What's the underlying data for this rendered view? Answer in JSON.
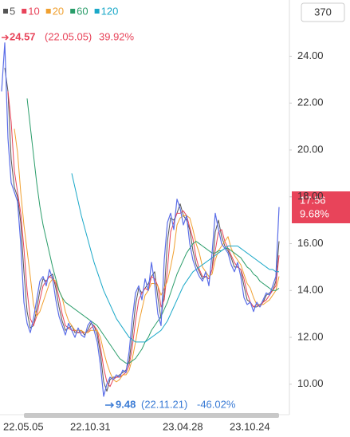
{
  "chart_data": {
    "type": "line",
    "badge": "370",
    "categories": [
      null,
      "22.05.05",
      null,
      null,
      null,
      null,
      null,
      null,
      null,
      null,
      null,
      null,
      null,
      null,
      null,
      null,
      null,
      null,
      null,
      null,
      null,
      null,
      "22.10.31",
      null,
      null,
      null,
      null,
      null,
      null,
      null,
      null,
      null,
      null,
      null,
      null,
      null,
      null,
      null,
      null,
      null,
      null,
      null,
      null,
      null,
      null,
      null,
      null,
      null,
      null,
      null,
      null,
      "23.04.28",
      null,
      null,
      null,
      null,
      null,
      null,
      null,
      null,
      null,
      null,
      null,
      null,
      null,
      null,
      null,
      null,
      null,
      null,
      null,
      null,
      "23.10.24",
      null,
      null,
      null,
      null,
      null,
      null,
      null,
      null,
      null,
      null,
      null,
      null,
      null,
      null,
      null
    ],
    "price": {
      "color": "#5b6ee8",
      "values": [
        22.5,
        24.57,
        20.5,
        18.6,
        18.2,
        17.8,
        16.0,
        13.5,
        12.6,
        12.2,
        12.8,
        13.6,
        14.4,
        14.6,
        14.2,
        14.9,
        14.5,
        13.6,
        12.9,
        12.5,
        12.1,
        12.6,
        12.3,
        12.0,
        12.4,
        12.1,
        12.0,
        12.5,
        12.7,
        12.3,
        11.8,
        10.8,
        9.48,
        10.0,
        10.3,
        10.2,
        10.4,
        10.3,
        10.6,
        10.5,
        11.4,
        12.8,
        13.9,
        14.2,
        13.6,
        14.5,
        14.0,
        15.2,
        14.3,
        13.0,
        12.5,
        15.3,
        16.9,
        17.3,
        16.6,
        17.9,
        17.5,
        16.8,
        17.2,
        16.0,
        15.3,
        14.9,
        14.6,
        14.4,
        14.8,
        14.2,
        15.6,
        17.3,
        16.6,
        16.0,
        15.8,
        15.6,
        15.1,
        14.8,
        15.2,
        14.6,
        13.7,
        13.4,
        13.5,
        13.1,
        13.5,
        13.3,
        13.6,
        13.9,
        13.8,
        14.2,
        14.6,
        17.56
      ]
    },
    "series": [
      {
        "name": "5",
        "color": "#555555",
        "values": [
          null,
          23.5,
          22.5,
          19.6,
          18.4,
          18.0,
          16.9,
          14.8,
          13.1,
          12.4,
          12.5,
          13.2,
          14.0,
          14.5,
          14.4,
          14.6,
          14.7,
          14.1,
          13.3,
          12.7,
          12.3,
          12.4,
          12.5,
          12.2,
          12.2,
          12.3,
          12.1,
          12.3,
          12.6,
          12.5,
          12.1,
          11.3,
          10.1,
          9.7,
          10.2,
          10.3,
          10.3,
          10.4,
          10.5,
          10.6,
          11.0,
          12.1,
          13.4,
          14.1,
          13.9,
          14.1,
          14.3,
          14.6,
          14.8,
          13.7,
          12.8,
          13.9,
          16.1,
          17.1,
          17.0,
          17.3,
          17.7,
          17.2,
          17.0,
          16.6,
          15.7,
          15.1,
          14.8,
          14.5,
          14.6,
          14.5,
          14.9,
          16.5,
          17.0,
          16.3,
          15.9,
          15.7,
          15.4,
          15.0,
          15.0,
          14.9,
          14.2,
          13.6,
          13.5,
          13.3,
          13.3,
          13.4,
          13.5,
          13.8,
          13.9,
          14.0,
          14.4,
          16.1
        ]
      },
      {
        "name": "10",
        "color": "#e8445a",
        "values": [
          null,
          null,
          22.5,
          21.2,
          19.1,
          18.2,
          17.3,
          15.8,
          14.0,
          12.8,
          12.5,
          12.9,
          13.6,
          14.2,
          14.4,
          14.6,
          14.5,
          14.3,
          13.7,
          13.0,
          12.5,
          12.4,
          12.3,
          12.3,
          12.2,
          12.2,
          12.2,
          12.2,
          12.4,
          12.5,
          12.3,
          11.6,
          10.7,
          10.1,
          9.9,
          10.2,
          10.3,
          10.3,
          10.4,
          10.5,
          10.8,
          11.6,
          12.7,
          13.6,
          13.9,
          14.1,
          14.0,
          14.6,
          14.5,
          14.2,
          13.3,
          13.6,
          14.9,
          16.5,
          16.9,
          17.3,
          17.3,
          17.4,
          17.2,
          16.7,
          16.2,
          15.4,
          14.9,
          14.6,
          14.6,
          14.5,
          14.9,
          15.7,
          16.5,
          16.6,
          16.1,
          15.8,
          15.5,
          15.2,
          15.0,
          14.9,
          14.5,
          13.9,
          13.5,
          13.3,
          13.4,
          13.3,
          13.5,
          13.6,
          13.8,
          14.0,
          14.2,
          15.5
        ]
      },
      {
        "name": "20",
        "color": "#f0a030",
        "values": [
          null,
          null,
          null,
          null,
          20.9,
          19.9,
          18.2,
          16.8,
          15.7,
          14.6,
          13.4,
          12.9,
          13.1,
          13.5,
          13.9,
          14.3,
          14.5,
          14.4,
          14.0,
          13.7,
          13.1,
          12.7,
          12.5,
          12.3,
          12.3,
          12.3,
          12.2,
          12.2,
          12.3,
          12.3,
          12.3,
          12.0,
          11.4,
          10.9,
          10.5,
          10.2,
          10.1,
          10.2,
          10.4,
          10.4,
          10.6,
          11.1,
          11.8,
          12.6,
          13.2,
          13.8,
          14.0,
          14.3,
          14.3,
          14.2,
          13.8,
          14.1,
          14.4,
          15.0,
          15.7,
          16.8,
          17.1,
          17.2,
          17.2,
          17.1,
          16.6,
          16.0,
          15.6,
          15.0,
          14.8,
          14.6,
          14.7,
          15.3,
          15.7,
          15.9,
          16.1,
          16.3,
          15.8,
          15.5,
          15.3,
          15.1,
          14.7,
          14.3,
          14.1,
          13.7,
          13.4,
          13.4,
          13.4,
          13.5,
          13.6,
          13.8,
          14.0,
          14.6
        ]
      },
      {
        "name": "60",
        "color": "#2a9d6a",
        "values": [
          null,
          null,
          null,
          null,
          null,
          null,
          null,
          null,
          22.2,
          21.0,
          19.8,
          18.6,
          17.6,
          16.8,
          16.2,
          15.6,
          15.0,
          14.5,
          14.0,
          13.7,
          13.5,
          13.4,
          13.3,
          13.2,
          13.1,
          13.0,
          12.9,
          12.8,
          12.7,
          12.6,
          12.5,
          12.3,
          12.1,
          11.9,
          11.7,
          11.5,
          11.3,
          11.1,
          11.0,
          10.9,
          10.9,
          11.0,
          11.1,
          11.3,
          11.5,
          11.8,
          12.0,
          12.3,
          12.5,
          12.7,
          12.9,
          13.2,
          13.5,
          13.9,
          14.3,
          14.7,
          15.0,
          15.3,
          15.6,
          15.8,
          16.0,
          16.1,
          16.0,
          15.9,
          15.8,
          15.7,
          15.6,
          15.6,
          15.7,
          15.7,
          15.8,
          15.8,
          15.7,
          15.6,
          15.5,
          15.4,
          15.2,
          15.0,
          14.9,
          14.7,
          14.6,
          14.4,
          14.3,
          14.2,
          14.1,
          14.0,
          14.0,
          14.1
        ]
      },
      {
        "name": "120",
        "color": "#1aa8c8",
        "values": [
          null,
          null,
          null,
          null,
          null,
          null,
          null,
          null,
          null,
          null,
          null,
          null,
          null,
          null,
          null,
          null,
          null,
          null,
          null,
          null,
          null,
          null,
          19.0,
          18.4,
          17.8,
          17.2,
          16.7,
          16.2,
          15.7,
          15.2,
          14.8,
          14.4,
          14.0,
          13.7,
          13.4,
          13.1,
          12.8,
          12.6,
          12.4,
          12.2,
          12.0,
          11.9,
          11.8,
          11.8,
          11.8,
          11.8,
          11.9,
          12.0,
          12.1,
          12.2,
          12.3,
          12.5,
          12.7,
          13.0,
          13.3,
          13.6,
          13.9,
          14.2,
          14.4,
          14.6,
          14.8,
          14.9,
          15.0,
          15.1,
          15.2,
          15.3,
          15.4,
          15.5,
          15.6,
          15.7,
          15.8,
          15.9,
          15.9,
          15.9,
          15.9,
          15.8,
          15.7,
          15.6,
          15.5,
          15.4,
          15.3,
          15.2,
          15.1,
          15.0,
          14.9,
          14.9,
          14.8,
          14.8
        ]
      }
    ],
    "ylim": [
      8.7,
      26.4
    ],
    "yticks": [
      {
        "value": 10,
        "label": "10.00"
      },
      {
        "value": 12,
        "label": "12.00"
      },
      {
        "value": 14,
        "label": "14.00"
      },
      {
        "value": 16,
        "label": "16.00"
      },
      {
        "value": 18,
        "label": "18.00"
      },
      {
        "value": 20,
        "label": "20.00"
      },
      {
        "value": 22,
        "label": "22.00"
      },
      {
        "value": 24,
        "label": "24.00"
      }
    ],
    "high_label": {
      "price": "24.57",
      "date": "(22.05.05)",
      "change": "39.92%"
    },
    "low_label": {
      "price": "9.48",
      "date": "(22.11.21)",
      "change": "-46.02%"
    },
    "last_label": {
      "price": "17.56",
      "change": "9.68%"
    }
  }
}
